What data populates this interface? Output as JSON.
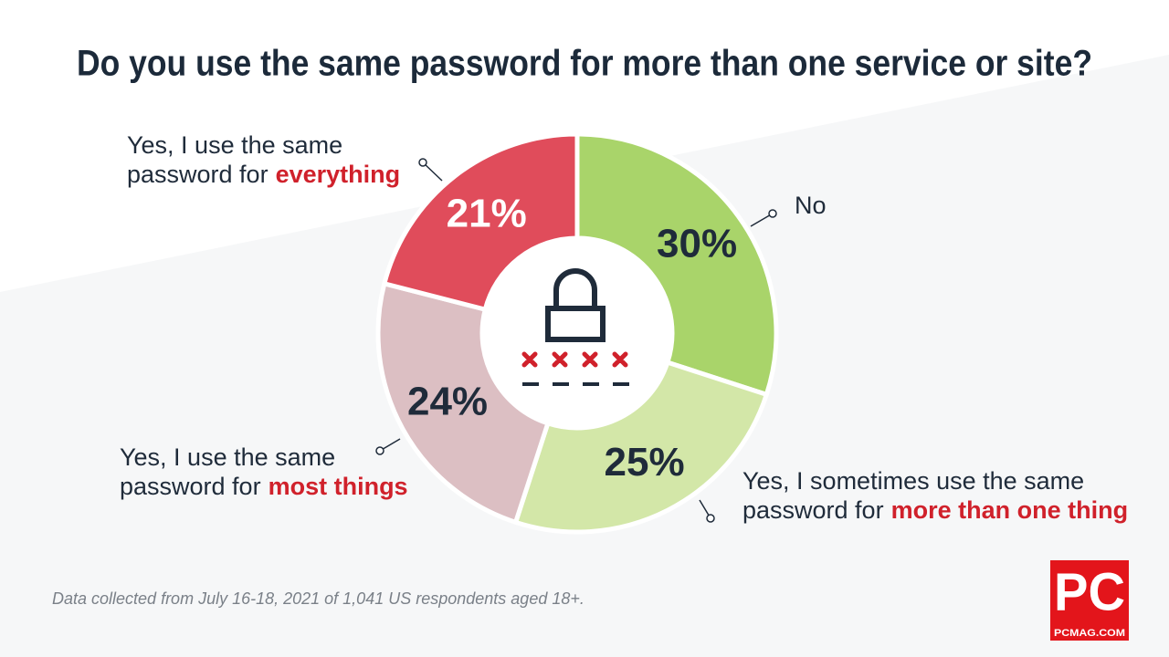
{
  "chart_data": {
    "type": "pie",
    "title": "Do you use the same password for more than one service or site?",
    "categories": [
      {
        "lines": [
          "No"
        ]
      },
      {
        "lines": [
          "Yes, I sometimes use the same",
          "password for"
        ],
        "emphasis": "more than one thing"
      },
      {
        "lines": [
          "Yes, I use the same",
          "password for"
        ],
        "emphasis": "most things"
      },
      {
        "lines": [
          "Yes, I use the same",
          "password for"
        ],
        "emphasis": "everything"
      }
    ],
    "values": [
      30,
      25,
      24,
      21
    ],
    "value_labels": [
      "30%",
      "25%",
      "24%",
      "21%"
    ],
    "colors": [
      "#a9d46a",
      "#d3e7a8",
      "#dcbfc3",
      "#e04c5b"
    ],
    "value_label_colors": [
      "#1f2b3a",
      "#1f2b3a",
      "#1f2b3a",
      "#ffffff"
    ],
    "footnote": "Data collected from July 16-18, 2021 of 1,041 US respondents aged 18+.",
    "logo": {
      "mark": "PC",
      "site": "PCMAG.COM"
    }
  }
}
